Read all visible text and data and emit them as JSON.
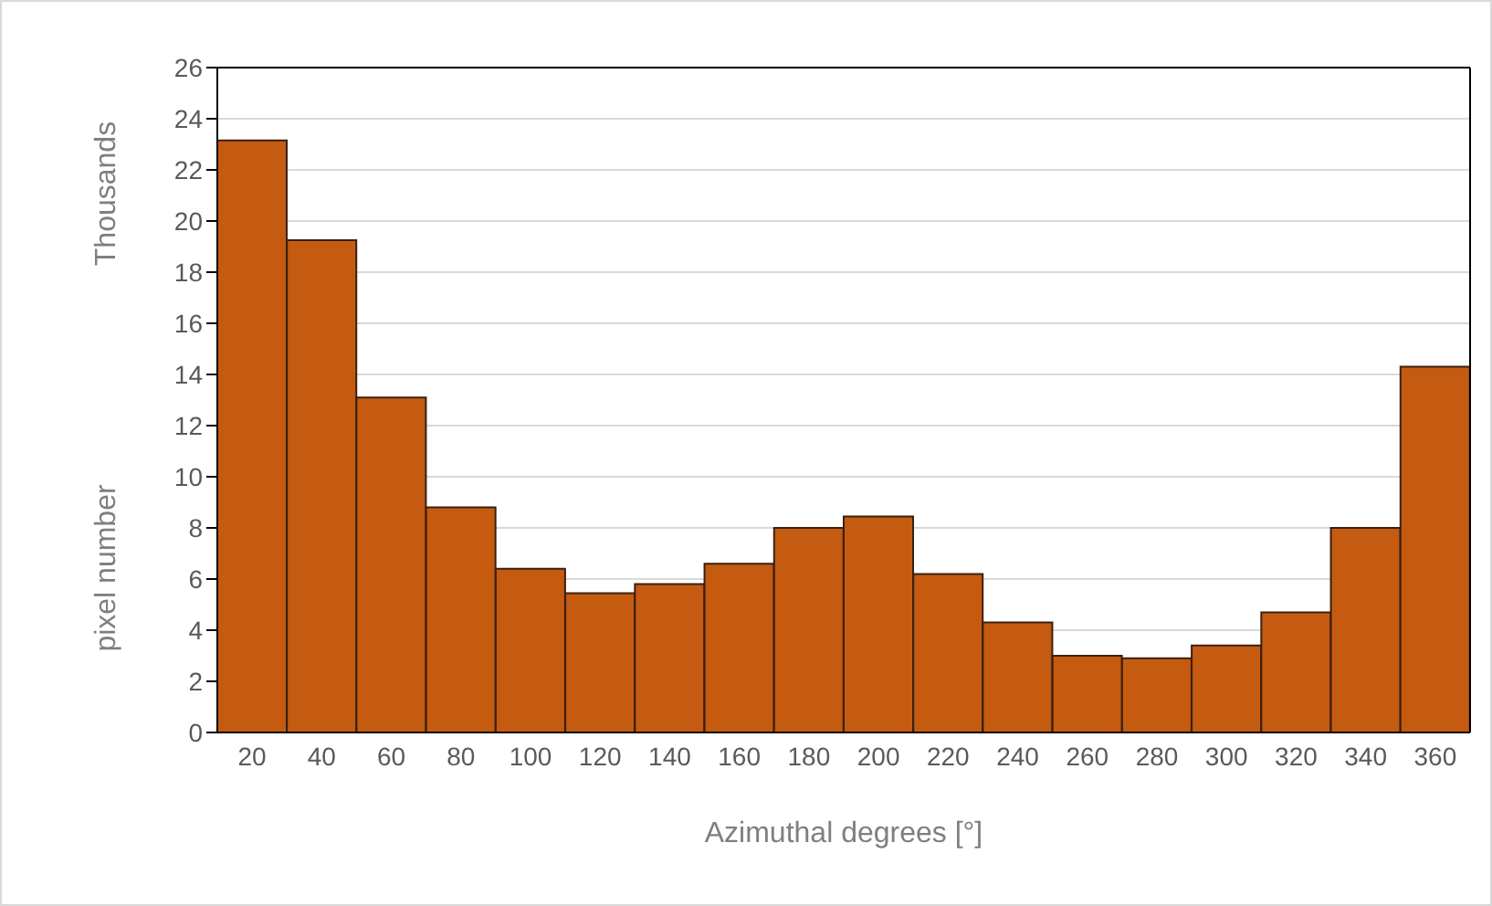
{
  "chart_data": {
    "type": "bar",
    "xlabel": "Azimuthal degrees [°]",
    "ylabel": "pixel number",
    "annotations": [
      "Thousands"
    ],
    "categories": [
      "20",
      "40",
      "60",
      "80",
      "100",
      "120",
      "140",
      "160",
      "180",
      "200",
      "220",
      "240",
      "260",
      "280",
      "300",
      "320",
      "340",
      "360"
    ],
    "values": [
      23.15,
      19.25,
      13.1,
      8.8,
      6.4,
      5.45,
      5.8,
      6.6,
      8.0,
      8.45,
      6.2,
      4.3,
      3.0,
      2.9,
      3.4,
      4.7,
      8.0,
      14.3
    ],
    "color": "#c55a11",
    "ylim": [
      0,
      26
    ],
    "yticks": [
      0,
      2,
      4,
      6,
      8,
      10,
      12,
      14,
      16,
      18,
      20,
      22,
      24,
      26
    ],
    "grid": "y"
  }
}
